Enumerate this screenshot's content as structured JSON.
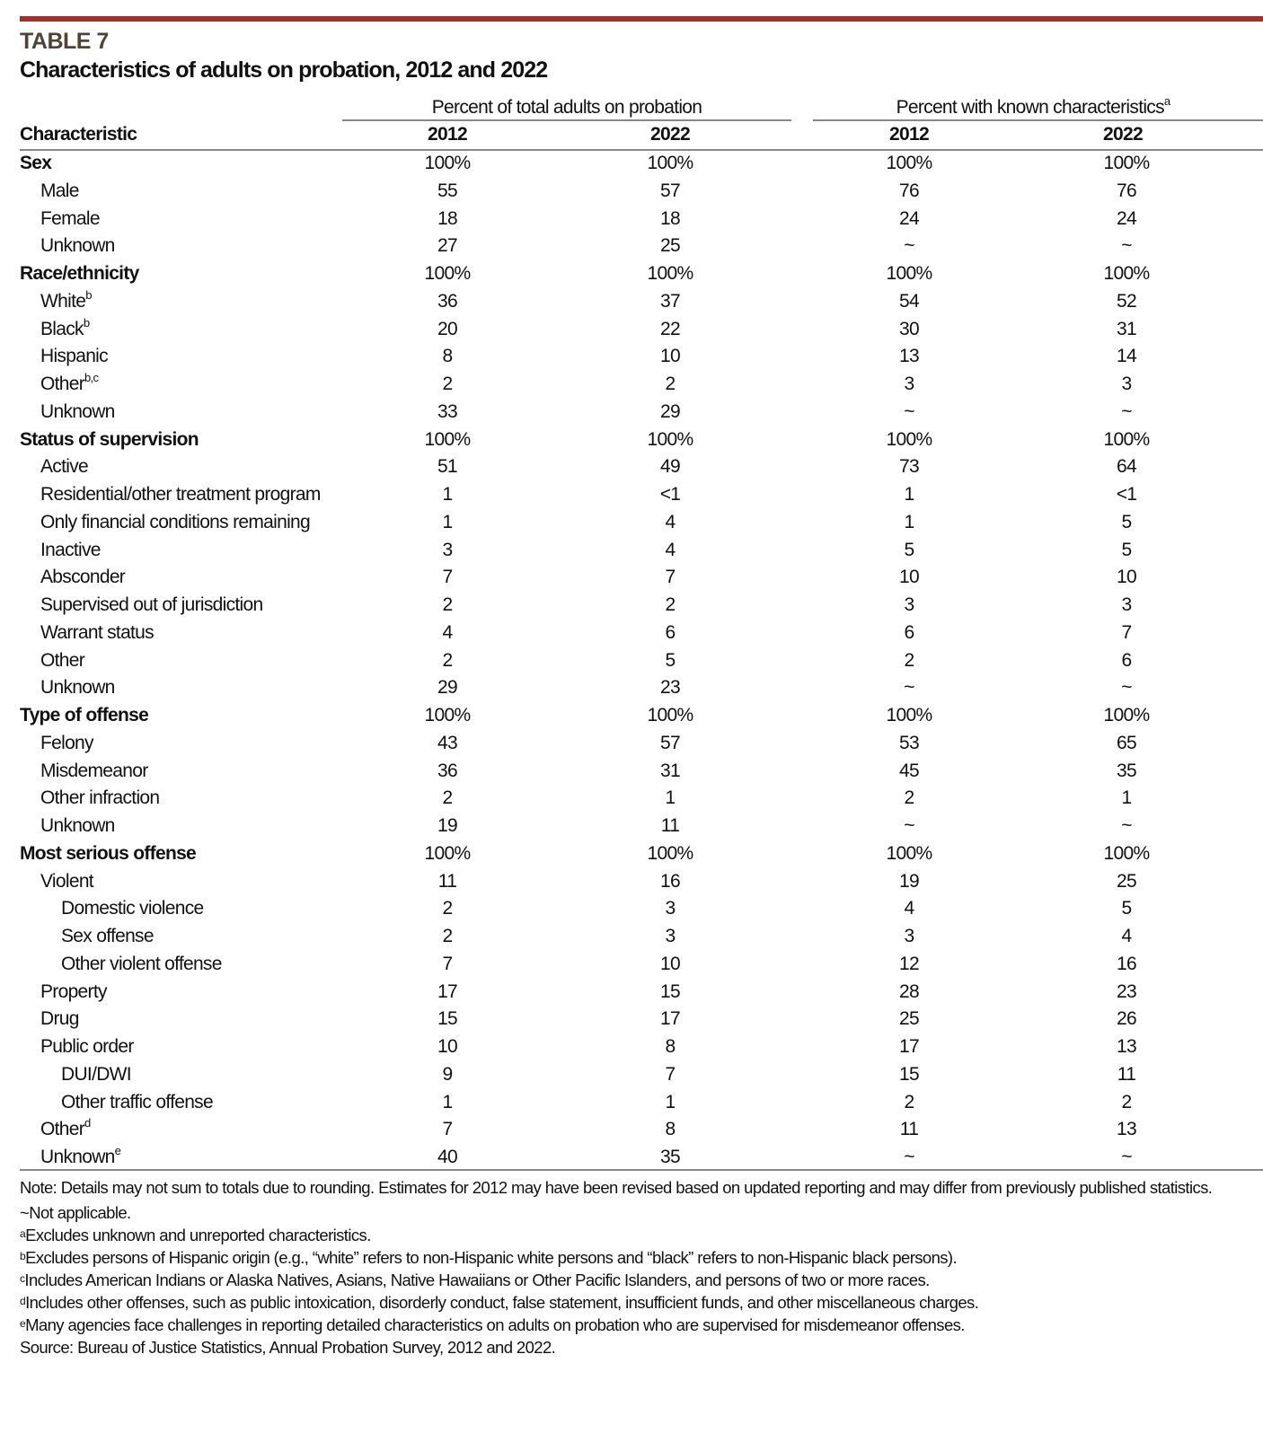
{
  "table_label": "TABLE 7",
  "title": "Characteristics of adults on probation, 2012 and 2022",
  "accent_color": "#9a3328",
  "group_headers": [
    {
      "label": "Percent of total adults on probation",
      "sup": ""
    },
    {
      "label": "Percent with known characteristics",
      "sup": "a"
    }
  ],
  "column_headers": [
    "Characteristic",
    "2012",
    "2022",
    "2012",
    "2022"
  ],
  "rows": [
    {
      "label": "Sex",
      "level": 0,
      "bold": true,
      "sup": "",
      "values": [
        "100%",
        "100%",
        "100%",
        "100%"
      ]
    },
    {
      "label": "Male",
      "level": 1,
      "bold": false,
      "sup": "",
      "values": [
        "55",
        "57",
        "76",
        "76"
      ]
    },
    {
      "label": "Female",
      "level": 1,
      "bold": false,
      "sup": "",
      "values": [
        "18",
        "18",
        "24",
        "24"
      ]
    },
    {
      "label": "Unknown",
      "level": 1,
      "bold": false,
      "sup": "",
      "values": [
        "27",
        "25",
        "~",
        "~"
      ]
    },
    {
      "label": "Race/ethnicity",
      "level": 0,
      "bold": true,
      "sup": "",
      "values": [
        "100%",
        "100%",
        "100%",
        "100%"
      ]
    },
    {
      "label": "White",
      "level": 1,
      "bold": false,
      "sup": "b",
      "values": [
        "36",
        "37",
        "54",
        "52"
      ]
    },
    {
      "label": "Black",
      "level": 1,
      "bold": false,
      "sup": "b",
      "values": [
        "20",
        "22",
        "30",
        "31"
      ]
    },
    {
      "label": "Hispanic",
      "level": 1,
      "bold": false,
      "sup": "",
      "values": [
        "8",
        "10",
        "13",
        "14"
      ]
    },
    {
      "label": "Other",
      "level": 1,
      "bold": false,
      "sup": "b,c",
      "values": [
        "2",
        "2",
        "3",
        "3"
      ]
    },
    {
      "label": "Unknown",
      "level": 1,
      "bold": false,
      "sup": "",
      "values": [
        "33",
        "29",
        "~",
        "~"
      ]
    },
    {
      "label": "Status of supervision",
      "level": 0,
      "bold": true,
      "sup": "",
      "values": [
        "100%",
        "100%",
        "100%",
        "100%"
      ]
    },
    {
      "label": "Active",
      "level": 1,
      "bold": false,
      "sup": "",
      "values": [
        "51",
        "49",
        "73",
        "64"
      ]
    },
    {
      "label": "Residential/other treatment program",
      "level": 1,
      "bold": false,
      "sup": "",
      "values": [
        "1",
        "<1",
        "1",
        "<1"
      ]
    },
    {
      "label": "Only financial conditions remaining",
      "level": 1,
      "bold": false,
      "sup": "",
      "values": [
        "1",
        "4",
        "1",
        "5"
      ]
    },
    {
      "label": "Inactive",
      "level": 1,
      "bold": false,
      "sup": "",
      "values": [
        "3",
        "4",
        "5",
        "5"
      ]
    },
    {
      "label": "Absconder",
      "level": 1,
      "bold": false,
      "sup": "",
      "values": [
        "7",
        "7",
        "10",
        "10"
      ]
    },
    {
      "label": "Supervised out of jurisdiction",
      "level": 1,
      "bold": false,
      "sup": "",
      "values": [
        "2",
        "2",
        "3",
        "3"
      ]
    },
    {
      "label": "Warrant status",
      "level": 1,
      "bold": false,
      "sup": "",
      "values": [
        "4",
        "6",
        "6",
        "7"
      ]
    },
    {
      "label": "Other",
      "level": 1,
      "bold": false,
      "sup": "",
      "values": [
        "2",
        "5",
        "2",
        "6"
      ]
    },
    {
      "label": "Unknown",
      "level": 1,
      "bold": false,
      "sup": "",
      "values": [
        "29",
        "23",
        "~",
        "~"
      ]
    },
    {
      "label": "Type of offense",
      "level": 0,
      "bold": true,
      "sup": "",
      "values": [
        "100%",
        "100%",
        "100%",
        "100%"
      ]
    },
    {
      "label": "Felony",
      "level": 1,
      "bold": false,
      "sup": "",
      "values": [
        "43",
        "57",
        "53",
        "65"
      ]
    },
    {
      "label": "Misdemeanor",
      "level": 1,
      "bold": false,
      "sup": "",
      "values": [
        "36",
        "31",
        "45",
        "35"
      ]
    },
    {
      "label": "Other infraction",
      "level": 1,
      "bold": false,
      "sup": "",
      "values": [
        "2",
        "1",
        "2",
        "1"
      ]
    },
    {
      "label": "Unknown",
      "level": 1,
      "bold": false,
      "sup": "",
      "values": [
        "19",
        "11",
        "~",
        "~"
      ]
    },
    {
      "label": "Most serious offense",
      "level": 0,
      "bold": true,
      "sup": "",
      "values": [
        "100%",
        "100%",
        "100%",
        "100%"
      ]
    },
    {
      "label": "Violent",
      "level": 1,
      "bold": false,
      "sup": "",
      "values": [
        "11",
        "16",
        "19",
        "25"
      ]
    },
    {
      "label": "Domestic violence",
      "level": 2,
      "bold": false,
      "sup": "",
      "values": [
        "2",
        "3",
        "4",
        "5"
      ]
    },
    {
      "label": "Sex offense",
      "level": 2,
      "bold": false,
      "sup": "",
      "values": [
        "2",
        "3",
        "3",
        "4"
      ]
    },
    {
      "label": "Other violent offense",
      "level": 2,
      "bold": false,
      "sup": "",
      "values": [
        "7",
        "10",
        "12",
        "16"
      ]
    },
    {
      "label": "Property",
      "level": 1,
      "bold": false,
      "sup": "",
      "values": [
        "17",
        "15",
        "28",
        "23"
      ]
    },
    {
      "label": "Drug",
      "level": 1,
      "bold": false,
      "sup": "",
      "values": [
        "15",
        "17",
        "25",
        "26"
      ]
    },
    {
      "label": "Public order",
      "level": 1,
      "bold": false,
      "sup": "",
      "values": [
        "10",
        "8",
        "17",
        "13"
      ]
    },
    {
      "label": "DUI/DWI",
      "level": 2,
      "bold": false,
      "sup": "",
      "values": [
        "9",
        "7",
        "15",
        "11"
      ]
    },
    {
      "label": "Other traffic offense",
      "level": 2,
      "bold": false,
      "sup": "",
      "values": [
        "1",
        "1",
        "2",
        "2"
      ]
    },
    {
      "label": "Other",
      "level": 1,
      "bold": false,
      "sup": "d",
      "values": [
        "7",
        "8",
        "11",
        "13"
      ]
    },
    {
      "label": "Unknown",
      "level": 1,
      "bold": false,
      "sup": "e",
      "values": [
        "40",
        "35",
        "~",
        "~"
      ]
    }
  ],
  "notes": {
    "note": "Note: Details may not sum to totals due to rounding. Estimates for 2012 may have been revised based on updated reporting and may differ from previously published statistics.",
    "not_applicable": "~Not applicable.",
    "footnotes": [
      {
        "mark": "a",
        "text": "Excludes unknown and unreported characteristics."
      },
      {
        "mark": "b",
        "text": "Excludes persons of Hispanic origin (e.g., “white” refers to non-Hispanic white persons and “black” refers to non-Hispanic black persons)."
      },
      {
        "mark": "c",
        "text": "Includes American Indians or Alaska Natives, Asians, Native Hawaiians or Other Pacific Islanders, and persons of two or more races."
      },
      {
        "mark": "d",
        "text": "Includes other offenses, such as public intoxication, disorderly conduct, false statement, insufficient funds, and other miscellaneous charges."
      },
      {
        "mark": "e",
        "text": "Many agencies face challenges in reporting detailed characteristics on adults on probation who are supervised for misdemeanor offenses."
      }
    ],
    "source": "Source: Bureau of Justice Statistics, Annual Probation Survey, 2012 and 2022."
  }
}
